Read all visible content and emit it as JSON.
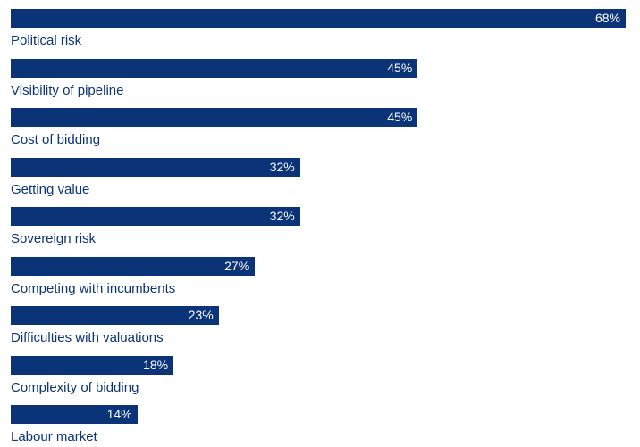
{
  "colors": {
    "bar": "#0b3478",
    "label_text": "#0b3478",
    "value_text": "#ffffff",
    "background": "#ffffff"
  },
  "chart_data": {
    "type": "bar",
    "orientation": "horizontal",
    "categories": [
      "Political risk",
      "Visibility of pipeline",
      "Cost of bidding",
      "Getting value",
      "Sovereign risk",
      "Competing with incumbents",
      "Difficulties with valuations",
      "Complexity of bidding",
      "Labour market"
    ],
    "values": [
      68,
      45,
      45,
      32,
      32,
      27,
      23,
      18,
      14
    ],
    "value_labels": [
      "68%",
      "45%",
      "45%",
      "32%",
      "32%",
      "27%",
      "23%",
      "18%",
      "14%"
    ],
    "unit": "%",
    "xlim": [
      0,
      68
    ],
    "grid": false,
    "legend": "none"
  }
}
